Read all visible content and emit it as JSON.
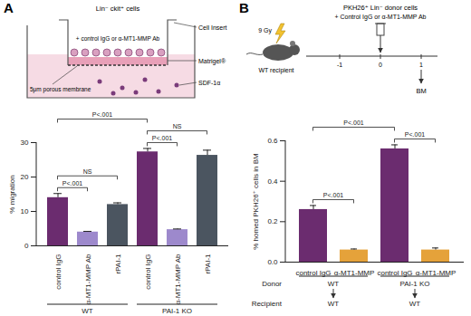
{
  "chart_data": [
    {
      "type": "bar",
      "title": "A",
      "y_label": "% migration",
      "categories": [
        "control IgG",
        "α-MT1-MMP Ab",
        "rPAI-1",
        "control IgG",
        "α-MT1-MMP Ab",
        "rPAI-1"
      ],
      "values": [
        14,
        4,
        12,
        27.3,
        4.7,
        26.3
      ],
      "errors": [
        1.2,
        0.2,
        0.5,
        1,
        0.2,
        1.5
      ],
      "colors": [
        "#6b2c6f",
        "#9d89cc",
        "#4b5560",
        "#6b2c6f",
        "#9d89cc",
        "#4b5560"
      ],
      "ylim": [
        0,
        30
      ],
      "yticks": [
        0,
        10,
        20,
        30
      ],
      "groups": [
        {
          "label": "WT",
          "start": 0,
          "end": 2
        },
        {
          "label": "PAI-1 KO",
          "start": 3,
          "end": 5
        }
      ],
      "brackets": [
        {
          "from": 0,
          "to": 1,
          "label": "P<.001"
        },
        {
          "from": 0,
          "to": 2,
          "label": "NS"
        },
        {
          "from": 0,
          "to": 3,
          "label": "P<.001"
        },
        {
          "from": 3,
          "to": 4,
          "label": "P<.001"
        },
        {
          "from": 3,
          "to": 5,
          "label": "NS"
        }
      ],
      "schematic": {
        "cells": "Lin⁻ ckit⁺ cells",
        "insert": "Cell Insert",
        "treatment": "+ control IgG or α-MT1-MMP Ab",
        "matrigel": "Matrigel®",
        "membrane": "5μm porous membrane",
        "chemokine": "SDF-1α"
      }
    },
    {
      "type": "bar",
      "title": "B",
      "y_label": "% homed PKH26⁺ cells in BM",
      "categories": [
        "control IgG",
        "α-MT1-MMP",
        "control IgG",
        "α-MT1-MMP"
      ],
      "values": [
        0.26,
        0.06,
        0.56,
        0.06
      ],
      "errors": [
        0.02,
        0.005,
        0.02,
        0.01
      ],
      "colors": [
        "#6b2c6f",
        "#e5a23a",
        "#6b2c6f",
        "#e5a23a"
      ],
      "ylim": [
        0,
        0.6
      ],
      "yticks": [
        {
          "value": 0,
          "label": "0.0"
        },
        0.2,
        0.4,
        0.6
      ],
      "group_rows": [
        "Donor",
        "Recipient"
      ],
      "groups": [
        {
          "labels": [
            "WT",
            "WT"
          ],
          "start": 0,
          "end": 1
        },
        {
          "labels": [
            "PAI-1 KO",
            "WT"
          ],
          "start": 2,
          "end": 3
        }
      ],
      "brackets": [
        {
          "from": 0,
          "to": 1,
          "label": "P<.001"
        },
        {
          "from": 0,
          "to": 2,
          "label": "P<.001"
        },
        {
          "from": 2,
          "to": 3,
          "label": "P<.001"
        }
      ],
      "schematic": {
        "donor": "PKH26⁺ Lin⁻ donor cells",
        "treatment": "+ Control IgG or α-MT1-MMP Ab",
        "dose": "9 Gy",
        "recipient": "WT recipient",
        "timeline": [
          -1,
          0,
          1
        ],
        "tissue": "BM"
      }
    }
  ]
}
